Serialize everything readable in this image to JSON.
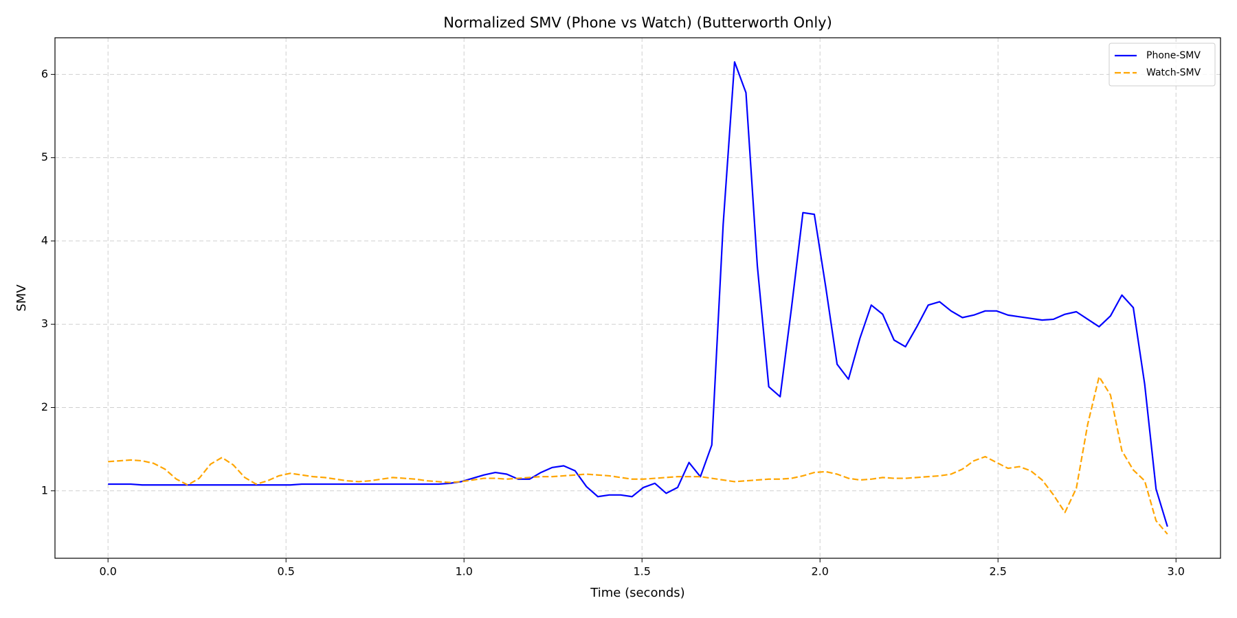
{
  "chart_data": {
    "type": "line",
    "title": "Normalized SMV (Phone vs Watch) (Butterworth Only)",
    "x_label": "Time (seconds)",
    "y_label": "SMV",
    "grid": true,
    "legend": "upper right",
    "xlim": [
      -0.149,
      3.125
    ],
    "ylim": [
      0.19,
      6.44
    ],
    "xticks": [
      {
        "value": 0,
        "label": "0.0"
      },
      0.5,
      {
        "value": 1,
        "label": "1.0"
      },
      1.5,
      {
        "value": 2,
        "label": "2.0"
      },
      2.5,
      {
        "value": 3,
        "label": "3.0"
      }
    ],
    "yticks": [
      1,
      2,
      3,
      4,
      5,
      6
    ],
    "x": [
      0,
      0.032,
      0.064,
      0.096,
      0.128,
      0.16,
      0.192,
      0.224,
      0.256,
      0.288,
      0.32,
      0.352,
      0.384,
      0.416,
      0.448,
      0.48,
      0.512,
      0.544,
      0.576,
      0.608,
      0.64,
      0.672,
      0.704,
      0.736,
      0.768,
      0.8,
      0.832,
      0.864,
      0.896,
      0.928,
      0.96,
      0.992,
      1.024,
      1.056,
      1.088,
      1.12,
      1.152,
      1.184,
      1.216,
      1.248,
      1.28,
      1.312,
      1.344,
      1.376,
      1.408,
      1.44,
      1.472,
      1.504,
      1.536,
      1.568,
      1.6,
      1.632,
      1.664,
      1.696,
      1.728,
      1.76,
      1.792,
      1.824,
      1.856,
      1.888,
      1.92,
      1.952,
      1.984,
      2.016,
      2.048,
      2.08,
      2.112,
      2.144,
      2.176,
      2.208,
      2.24,
      2.272,
      2.304,
      2.336,
      2.368,
      2.4,
      2.432,
      2.464,
      2.496,
      2.528,
      2.56,
      2.592,
      2.624,
      2.656,
      2.688,
      2.72,
      2.752,
      2.784,
      2.816,
      2.848,
      2.88,
      2.912,
      2.944,
      2.976
    ],
    "series": [
      {
        "name": "Phone-SMV",
        "color": "#0000ff",
        "linestyle": "solid",
        "values": [
          1.08,
          1.08,
          1.08,
          1.07,
          1.07,
          1.07,
          1.07,
          1.07,
          1.07,
          1.07,
          1.07,
          1.07,
          1.07,
          1.07,
          1.07,
          1.07,
          1.07,
          1.08,
          1.08,
          1.08,
          1.08,
          1.08,
          1.08,
          1.08,
          1.08,
          1.08,
          1.08,
          1.08,
          1.08,
          1.08,
          1.09,
          1.11,
          1.15,
          1.19,
          1.22,
          1.2,
          1.14,
          1.14,
          1.22,
          1.28,
          1.3,
          1.24,
          1.05,
          0.93,
          0.95,
          0.95,
          0.93,
          1.04,
          1.09,
          0.97,
          1.04,
          1.34,
          1.17,
          1.55,
          4.2,
          6.15,
          5.78,
          3.7,
          2.25,
          2.13,
          3.2,
          4.34,
          4.32,
          3.45,
          2.52,
          2.34,
          2.83,
          3.23,
          3.12,
          2.81,
          2.73,
          2.97,
          3.23,
          3.27,
          3.16,
          3.08,
          3.11,
          3.16,
          3.16,
          3.11,
          3.09,
          3.07,
          3.05,
          3.06,
          3.12,
          3.15,
          3.06,
          2.97,
          3.1,
          3.35,
          3.2,
          2.28,
          1.02,
          0.57
        ]
      },
      {
        "name": "Watch-SMV",
        "color": "#ffa500",
        "linestyle": "dashed",
        "values": [
          1.35,
          1.36,
          1.37,
          1.36,
          1.33,
          1.26,
          1.14,
          1.07,
          1.15,
          1.32,
          1.4,
          1.31,
          1.16,
          1.08,
          1.12,
          1.18,
          1.21,
          1.19,
          1.17,
          1.16,
          1.14,
          1.12,
          1.11,
          1.12,
          1.14,
          1.16,
          1.15,
          1.14,
          1.12,
          1.11,
          1.1,
          1.11,
          1.13,
          1.15,
          1.15,
          1.14,
          1.15,
          1.16,
          1.17,
          1.17,
          1.18,
          1.19,
          1.2,
          1.19,
          1.18,
          1.16,
          1.14,
          1.14,
          1.15,
          1.16,
          1.17,
          1.17,
          1.17,
          1.15,
          1.13,
          1.11,
          1.12,
          1.13,
          1.14,
          1.14,
          1.15,
          1.18,
          1.22,
          1.23,
          1.2,
          1.15,
          1.13,
          1.14,
          1.16,
          1.15,
          1.15,
          1.16,
          1.17,
          1.18,
          1.2,
          1.26,
          1.36,
          1.41,
          1.34,
          1.27,
          1.29,
          1.24,
          1.13,
          0.95,
          0.74,
          1.03,
          1.8,
          2.37,
          2.15,
          1.48,
          1.25,
          1.12,
          0.64,
          0.48
        ]
      }
    ]
  }
}
